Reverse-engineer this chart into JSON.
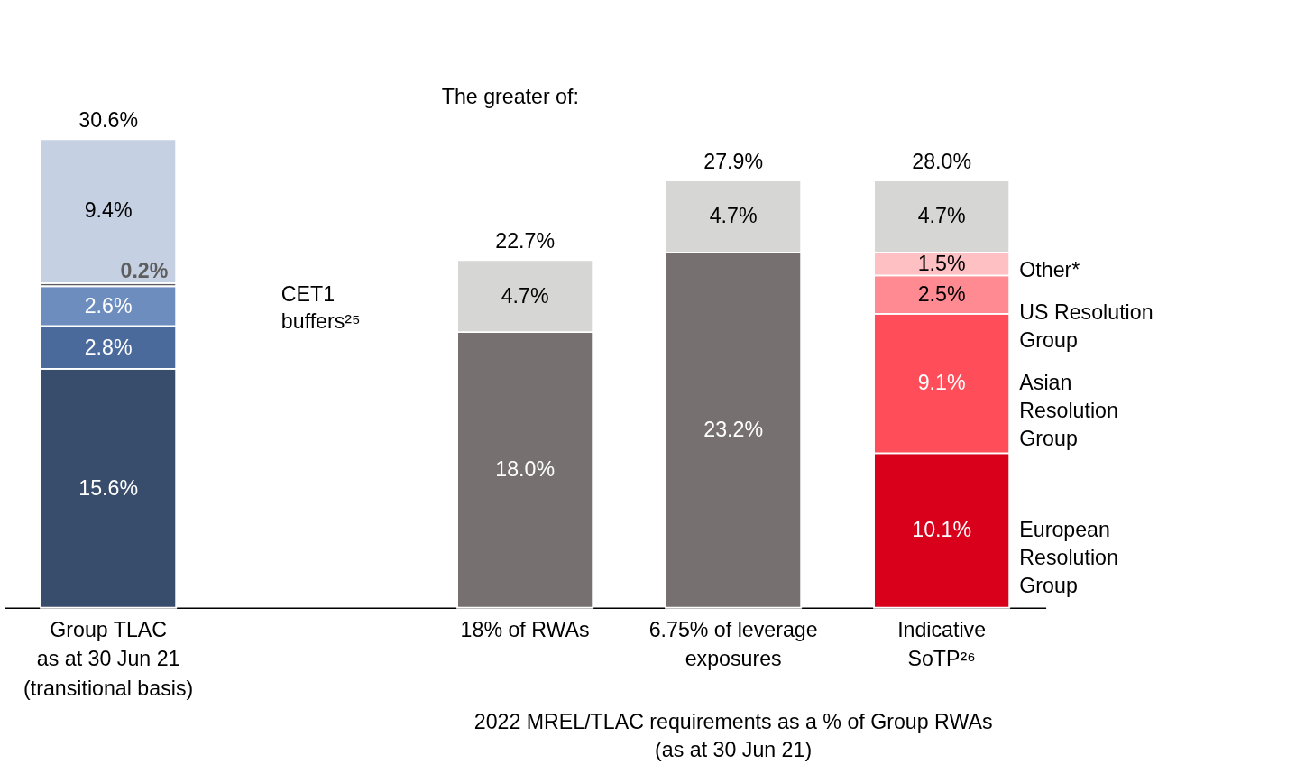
{
  "chart_data": {
    "type": "bar",
    "stacked": true,
    "grid": false,
    "tick_labels": "x",
    "categories": [
      "Group TLAC\nas at 30 Jun 21\n(transitional basis)",
      null,
      "18% of RWAs",
      "6.75% of leverage\nexposures",
      "Indicative\nSoTP²⁶"
    ],
    "series": [
      {
        "values": [
          15.6,
          null,
          18.0,
          23.2,
          10.1
        ],
        "value_labels": [
          "15.6%",
          null,
          "18.0%",
          "23.2%",
          "10.1%"
        ],
        "colors": [
          "#384c6b",
          null,
          "#767170",
          "#767170",
          "#d9001b"
        ]
      },
      {
        "values": [
          2.8,
          null,
          4.7,
          4.7,
          9.1
        ],
        "value_labels": [
          "2.8%",
          null,
          "4.7%",
          "4.7%",
          "9.1%"
        ],
        "colors": [
          "#4a6a9c",
          null,
          "#d6d6d4",
          "#d6d6d4",
          "#ff4d5a"
        ]
      },
      {
        "values": [
          2.6,
          null,
          null,
          null,
          2.5
        ],
        "value_labels": [
          "2.6%",
          null,
          null,
          null,
          "2.5%"
        ],
        "colors": [
          "#6d8dbf",
          null,
          null,
          null,
          "#ff8a92"
        ]
      },
      {
        "values": [
          0.2,
          null,
          null,
          null,
          1.5
        ],
        "value_labels": [
          "0.2%",
          null,
          null,
          null,
          "1.5%"
        ],
        "colors": [
          "#5e5e5e",
          null,
          null,
          null,
          "#ffc0c4"
        ]
      },
      {
        "values": [
          9.4,
          null,
          null,
          null,
          4.7
        ],
        "value_labels": [
          "9.4%",
          null,
          null,
          null,
          "4.7%"
        ],
        "colors": [
          "#c5d0e3",
          null,
          null,
          null,
          "#d6d6d4"
        ]
      }
    ],
    "totals": [
      "30.6%",
      null,
      "22.7%",
      "27.9%",
      "28.0%"
    ],
    "annotations": [
      "The greater of:",
      "CET1\nbuffers²⁵",
      "2022 MREL/TLAC requirements as a % of Group RWAs\n(as at 30 Jun 21)",
      "Other*",
      "US Resolution\nGroup",
      "Asian\nResolution\nGroup",
      "European\nResolution\nGroup"
    ]
  }
}
